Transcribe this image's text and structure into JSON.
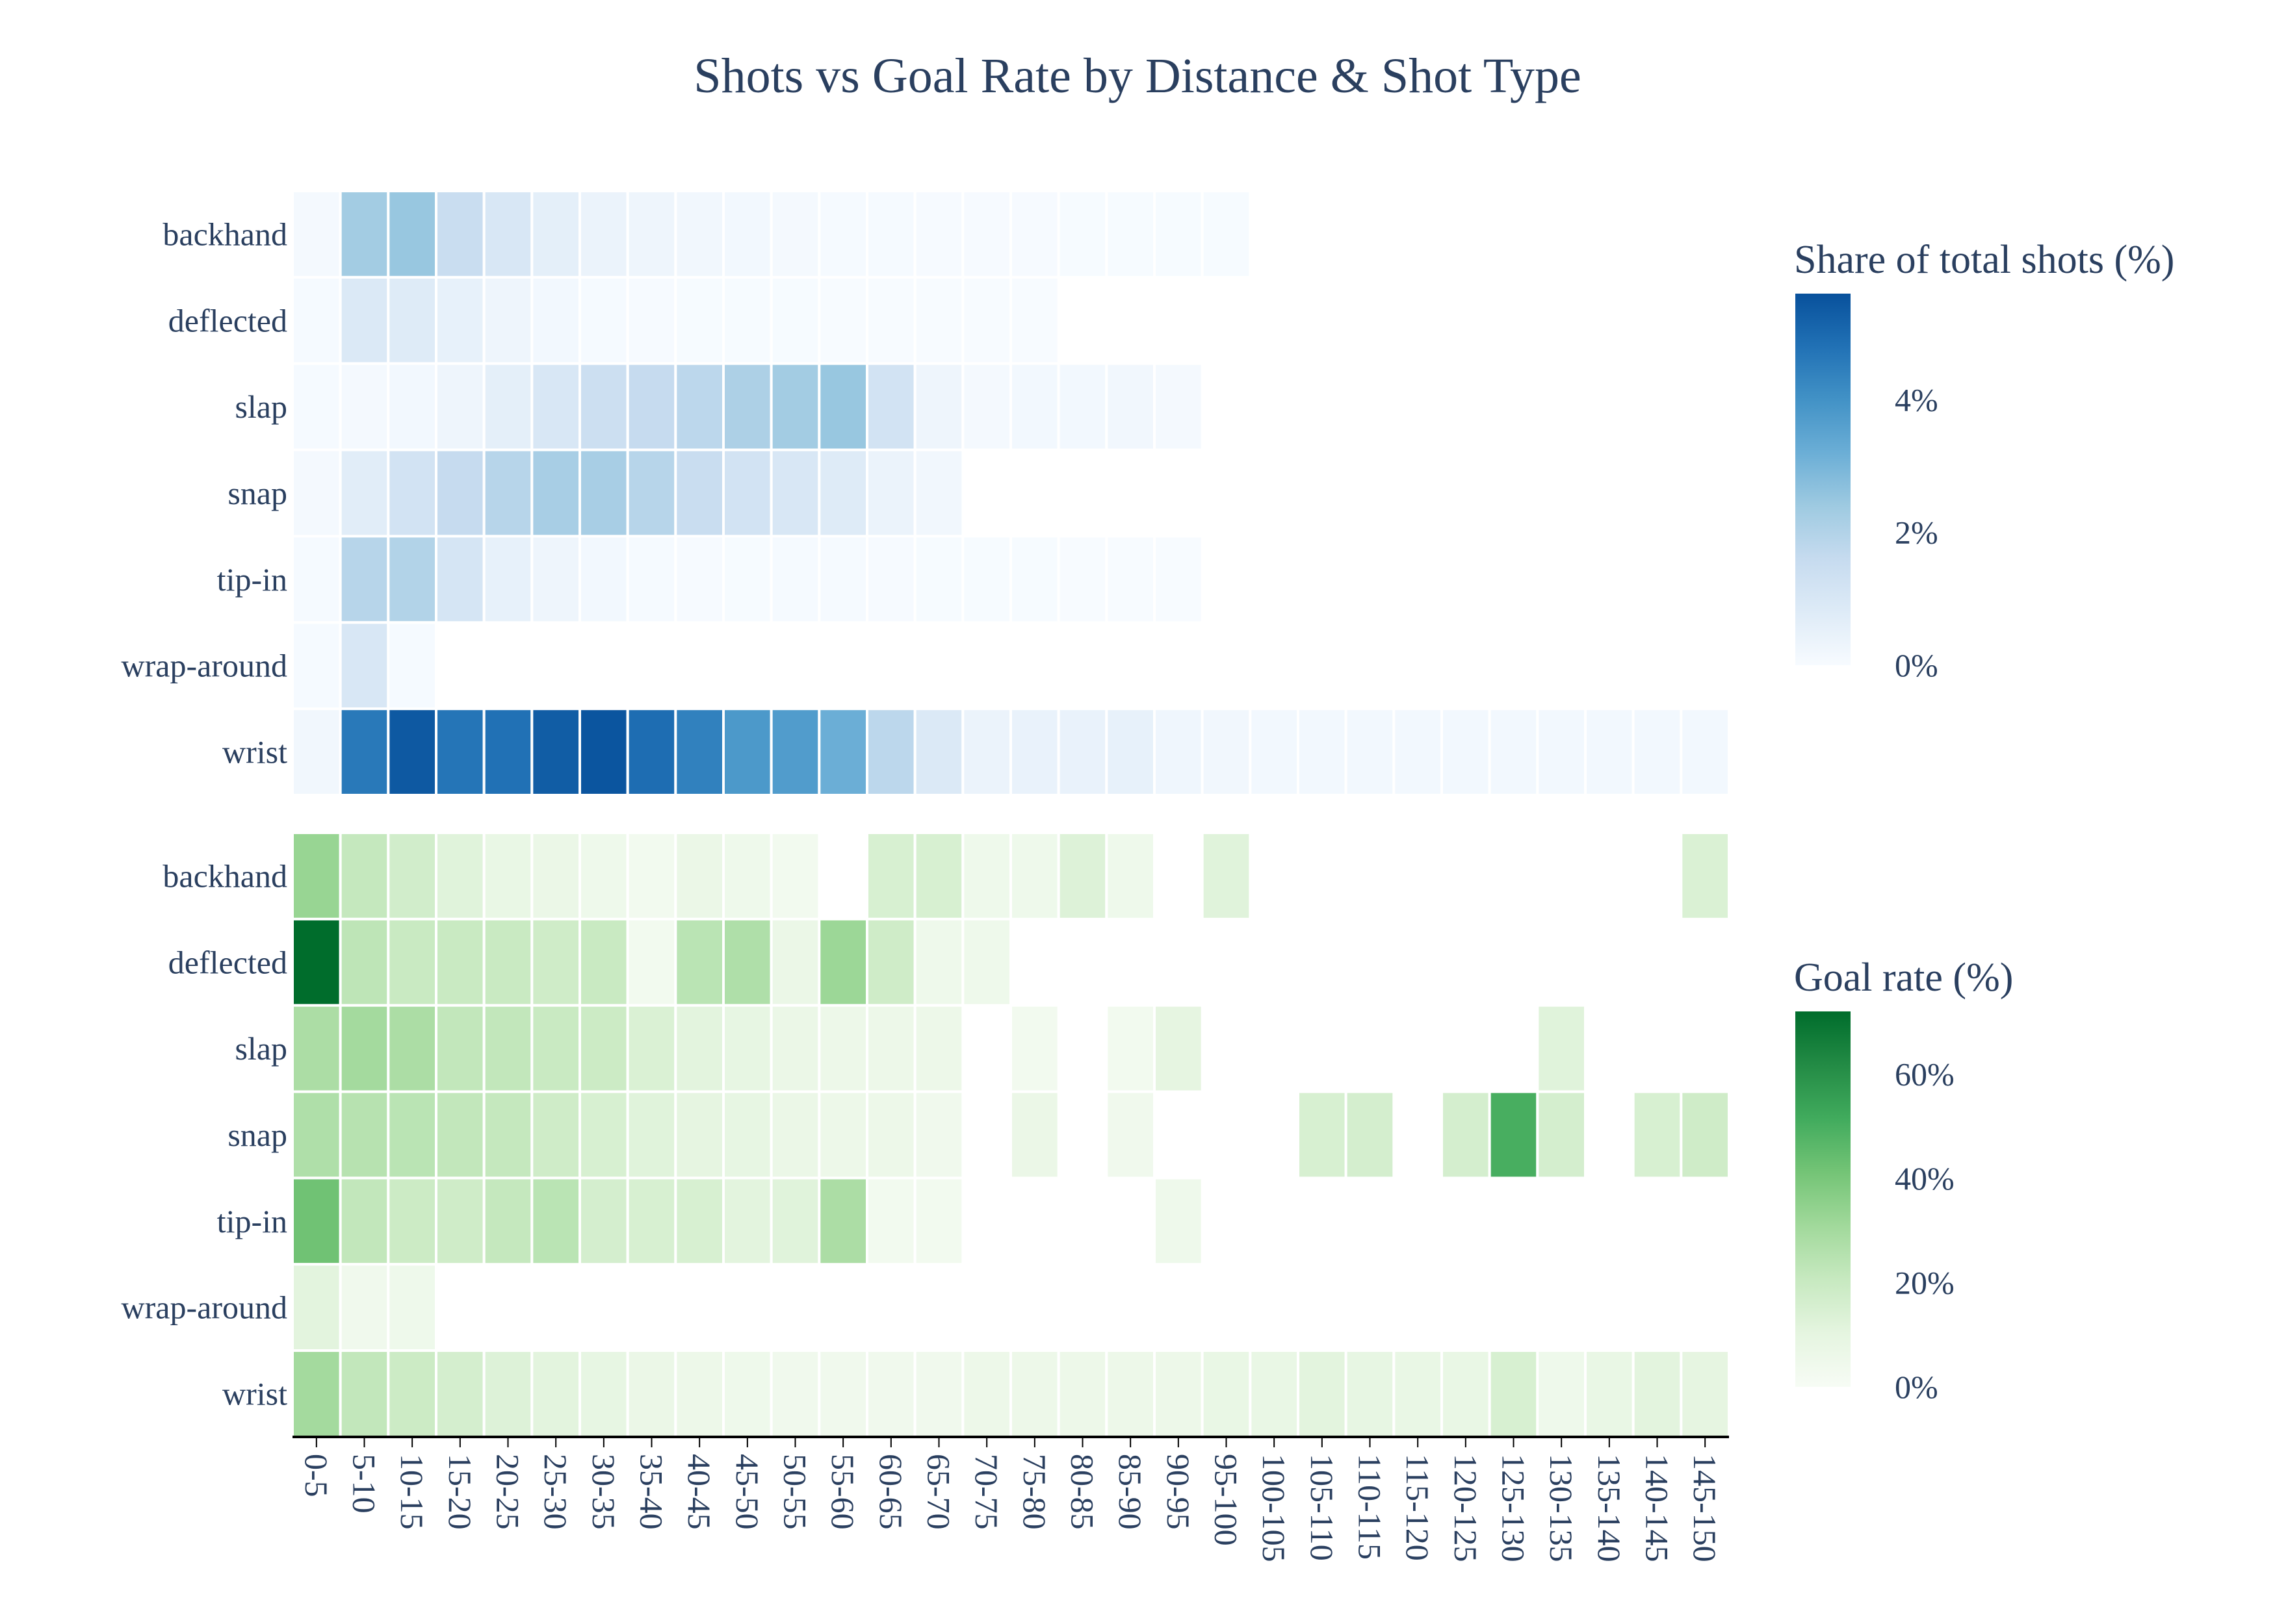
{
  "chart_data": {
    "type": "heatmap",
    "title": "Shots vs Goal Rate by Distance & Shot Type",
    "x_categories": [
      "0-5",
      "5-10",
      "10-15",
      "15-20",
      "20-25",
      "25-30",
      "30-35",
      "35-40",
      "40-45",
      "45-50",
      "50-55",
      "55-60",
      "60-65",
      "65-70",
      "70-75",
      "75-80",
      "80-85",
      "85-90",
      "90-95",
      "95-100",
      "100-105",
      "105-110",
      "110-115",
      "115-120",
      "120-125",
      "125-130",
      "130-135",
      "135-140",
      "140-145",
      "145-150"
    ],
    "y_categories": [
      "backhand",
      "deflected",
      "slap",
      "snap",
      "tip-in",
      "wrap-around",
      "wrist"
    ],
    "panels": [
      {
        "name": "shots",
        "colorbar_title": "Share of total shots (%)",
        "colorscale": [
          "#f7fbff",
          "#deebf7",
          "#c6dbef",
          "#9ecae1",
          "#6baed6",
          "#4292c6",
          "#2171b5",
          "#08519c"
        ],
        "zmin": 0,
        "zmax": 5.6,
        "colorbar_ticks": [
          {
            "value": 0,
            "label": "0%"
          },
          {
            "value": 2,
            "label": "2%"
          },
          {
            "value": 4,
            "label": "4%"
          }
        ],
        "values": [
          [
            0.1,
            2.3,
            2.5,
            1.5,
            1.0,
            0.6,
            0.4,
            0.3,
            0.2,
            0.15,
            0.1,
            0.05,
            0.05,
            0.04,
            0.03,
            0.03,
            0.02,
            0.02,
            0.02,
            0.02,
            null,
            null,
            null,
            null,
            null,
            null,
            null,
            null,
            null,
            null
          ],
          [
            0.05,
            0.9,
            0.8,
            0.5,
            0.3,
            0.15,
            0.05,
            0.03,
            0.02,
            0.02,
            0.02,
            0.01,
            0.01,
            0.01,
            0.01,
            0.01,
            null,
            null,
            null,
            null,
            null,
            null,
            null,
            null,
            null,
            null,
            null,
            null,
            null,
            null
          ],
          [
            0.05,
            0.1,
            0.15,
            0.3,
            0.6,
            1.0,
            1.4,
            1.6,
            1.8,
            2.1,
            2.3,
            2.5,
            1.2,
            0.3,
            0.1,
            0.15,
            0.15,
            0.2,
            0.1,
            null,
            null,
            null,
            null,
            null,
            null,
            null,
            null,
            null,
            null,
            null
          ],
          [
            0.1,
            0.7,
            1.2,
            1.6,
            1.9,
            2.2,
            2.2,
            1.9,
            1.5,
            1.2,
            1.0,
            0.8,
            0.4,
            0.2,
            null,
            null,
            null,
            null,
            null,
            null,
            null,
            null,
            null,
            null,
            null,
            null,
            null,
            null,
            null,
            null
          ],
          [
            0.05,
            1.9,
            2.0,
            1.1,
            0.5,
            0.3,
            0.15,
            0.05,
            0.03,
            0.02,
            0.05,
            0.05,
            0.03,
            0.02,
            0.02,
            0.02,
            0.01,
            0.01,
            0.01,
            null,
            null,
            null,
            null,
            null,
            null,
            null,
            null,
            null,
            null,
            null
          ],
          [
            0.05,
            1.0,
            0.05,
            null,
            null,
            null,
            null,
            null,
            null,
            null,
            null,
            null,
            null,
            null,
            null,
            null,
            null,
            null,
            null,
            null,
            null,
            null,
            null,
            null,
            null,
            null,
            null,
            null,
            null,
            null
          ],
          [
            0.2,
            4.6,
            5.4,
            4.7,
            4.8,
            5.3,
            5.5,
            4.9,
            4.4,
            3.8,
            3.7,
            3.2,
            1.8,
            0.9,
            0.4,
            0.45,
            0.45,
            0.5,
            0.25,
            0.2,
            0.15,
            0.15,
            0.15,
            0.15,
            0.15,
            0.15,
            0.15,
            0.15,
            0.15,
            0.15
          ]
        ]
      },
      {
        "name": "goal_rate",
        "colorbar_title": "Goal rate (%)",
        "colorscale": [
          "#f7fcf5",
          "#e5f5e0",
          "#c7e9c0",
          "#a1d99b",
          "#74c476",
          "#41ab5d",
          "#238b45",
          "#006d2c"
        ],
        "zmin": 0,
        "zmax": 72,
        "colorbar_ticks": [
          {
            "value": 0,
            "label": "0%"
          },
          {
            "value": 20,
            "label": "20%"
          },
          {
            "value": 40,
            "label": "40%"
          },
          {
            "value": 60,
            "label": "60%"
          }
        ],
        "values": [
          [
            33,
            21,
            17,
            12,
            8,
            7,
            5,
            3,
            7,
            5,
            3,
            null,
            15,
            15,
            5,
            5,
            13,
            5,
            null,
            12,
            null,
            null,
            null,
            null,
            null,
            null,
            null,
            null,
            null,
            14
          ],
          [
            72,
            23,
            20,
            20,
            20,
            18,
            20,
            3,
            24,
            27,
            7,
            32,
            18,
            5,
            5,
            null,
            null,
            null,
            null,
            null,
            null,
            null,
            null,
            null,
            null,
            null,
            null,
            null,
            null,
            null
          ],
          [
            28,
            30,
            28,
            22,
            22,
            20,
            19,
            14,
            11,
            9,
            7,
            6,
            6,
            6,
            null,
            3,
            null,
            3,
            10,
            null,
            null,
            null,
            null,
            null,
            null,
            null,
            12,
            null,
            null,
            null
          ],
          [
            27,
            25,
            24,
            22,
            21,
            18,
            15,
            12,
            10,
            9,
            7,
            6,
            6,
            4,
            null,
            7,
            null,
            4,
            null,
            null,
            null,
            15,
            16,
            null,
            16,
            50,
            16,
            null,
            15,
            18
          ],
          [
            42,
            22,
            19,
            18,
            21,
            24,
            16,
            15,
            15,
            11,
            12,
            28,
            3,
            3,
            null,
            null,
            null,
            null,
            5,
            null,
            null,
            null,
            null,
            null,
            null,
            null,
            null,
            null,
            null,
            null
          ],
          [
            11,
            4,
            5,
            null,
            null,
            null,
            null,
            null,
            null,
            null,
            null,
            null,
            null,
            null,
            null,
            null,
            null,
            null,
            null,
            null,
            null,
            null,
            null,
            null,
            null,
            null,
            null,
            null,
            null,
            null
          ],
          [
            30,
            22,
            19,
            16,
            13,
            11,
            9,
            7,
            6,
            5,
            4,
            4,
            4,
            4,
            6,
            6,
            6,
            6,
            6,
            8,
            8,
            11,
            9,
            8,
            8,
            15,
            5,
            8,
            11,
            10
          ]
        ]
      }
    ]
  }
}
